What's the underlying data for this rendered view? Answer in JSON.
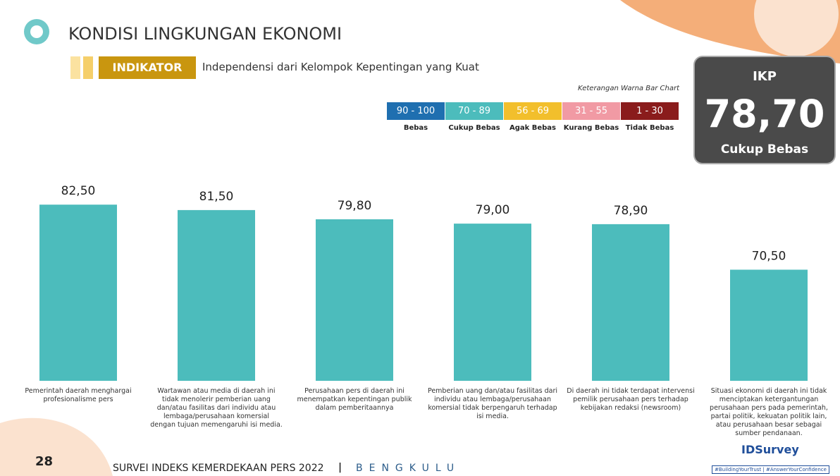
{
  "header": {
    "title": "KONDISI LINGKUNGAN EKONOMI",
    "indicator_label": "INDIKATOR",
    "indicator": "Independensi dari Kelompok Kepentingan yang Kuat"
  },
  "legend": {
    "title": "Keterangan Warna Bar Chart",
    "items": [
      {
        "range": "90 - 100",
        "label": "Bebas",
        "color": "#1f6fb0"
      },
      {
        "range": "70 - 89",
        "label": "Cukup Bebas",
        "color": "#4cbcbc"
      },
      {
        "range": "56 - 69",
        "label": "Agak Bebas",
        "color": "#f2bf2c"
      },
      {
        "range": "31 - 55",
        "label": "Kurang Bebas",
        "color": "#f19aa4"
      },
      {
        "range": "1 - 30",
        "label": "Tidak Bebas",
        "color": "#8a1c1c"
      }
    ]
  },
  "ikp": {
    "title": "IKP",
    "value": "78,70",
    "category": "Cukup Bebas"
  },
  "chart_data": {
    "type": "bar",
    "categories": [
      "Pemerintah daerah menghargai profesionalisme pers",
      "Wartawan atau media di daerah ini tidak menolerir pemberian uang dan/atau fasilitas dari individu atau lembaga/perusahaan komersial dengan tujuan memengaruhi isi media.",
      "Perusahaan pers di daerah ini menempatkan kepentingan publik dalam pemberitaannya",
      "Pemberian uang dan/atau fasilitas dari individu atau lembaga/perusahaan komersial tidak berpengaruh terhadap isi media.",
      "Di daerah ini tidak terdapat intervensi pemilik perusahaan pers terhadap kebijakan redaksi (newsroom)",
      "Situasi ekonomi di daerah ini tidak menciptakan ketergantungan perusahaan pers pada pemerintah, partai politik, kekuatan politik lain, atau perusahaan besar sebagai sumber pendanaan."
    ],
    "values": [
      82.5,
      81.5,
      79.8,
      79.0,
      78.9,
      70.5
    ],
    "value_labels": [
      "82,50",
      "81,50",
      "79,80",
      "79,00",
      "78,90",
      "70,50"
    ],
    "color": "#4cbcbc",
    "ylim": [
      50,
      85
    ]
  },
  "footer": {
    "page": "28",
    "survey": "SURVEI INDEKS KEMERDEKAAN PERS 2022",
    "separator": "|",
    "region": "BENGKULU",
    "logo": "IDSurvey",
    "tagline": "#BuildingYourTrust | #AnswerYourConfidence"
  }
}
